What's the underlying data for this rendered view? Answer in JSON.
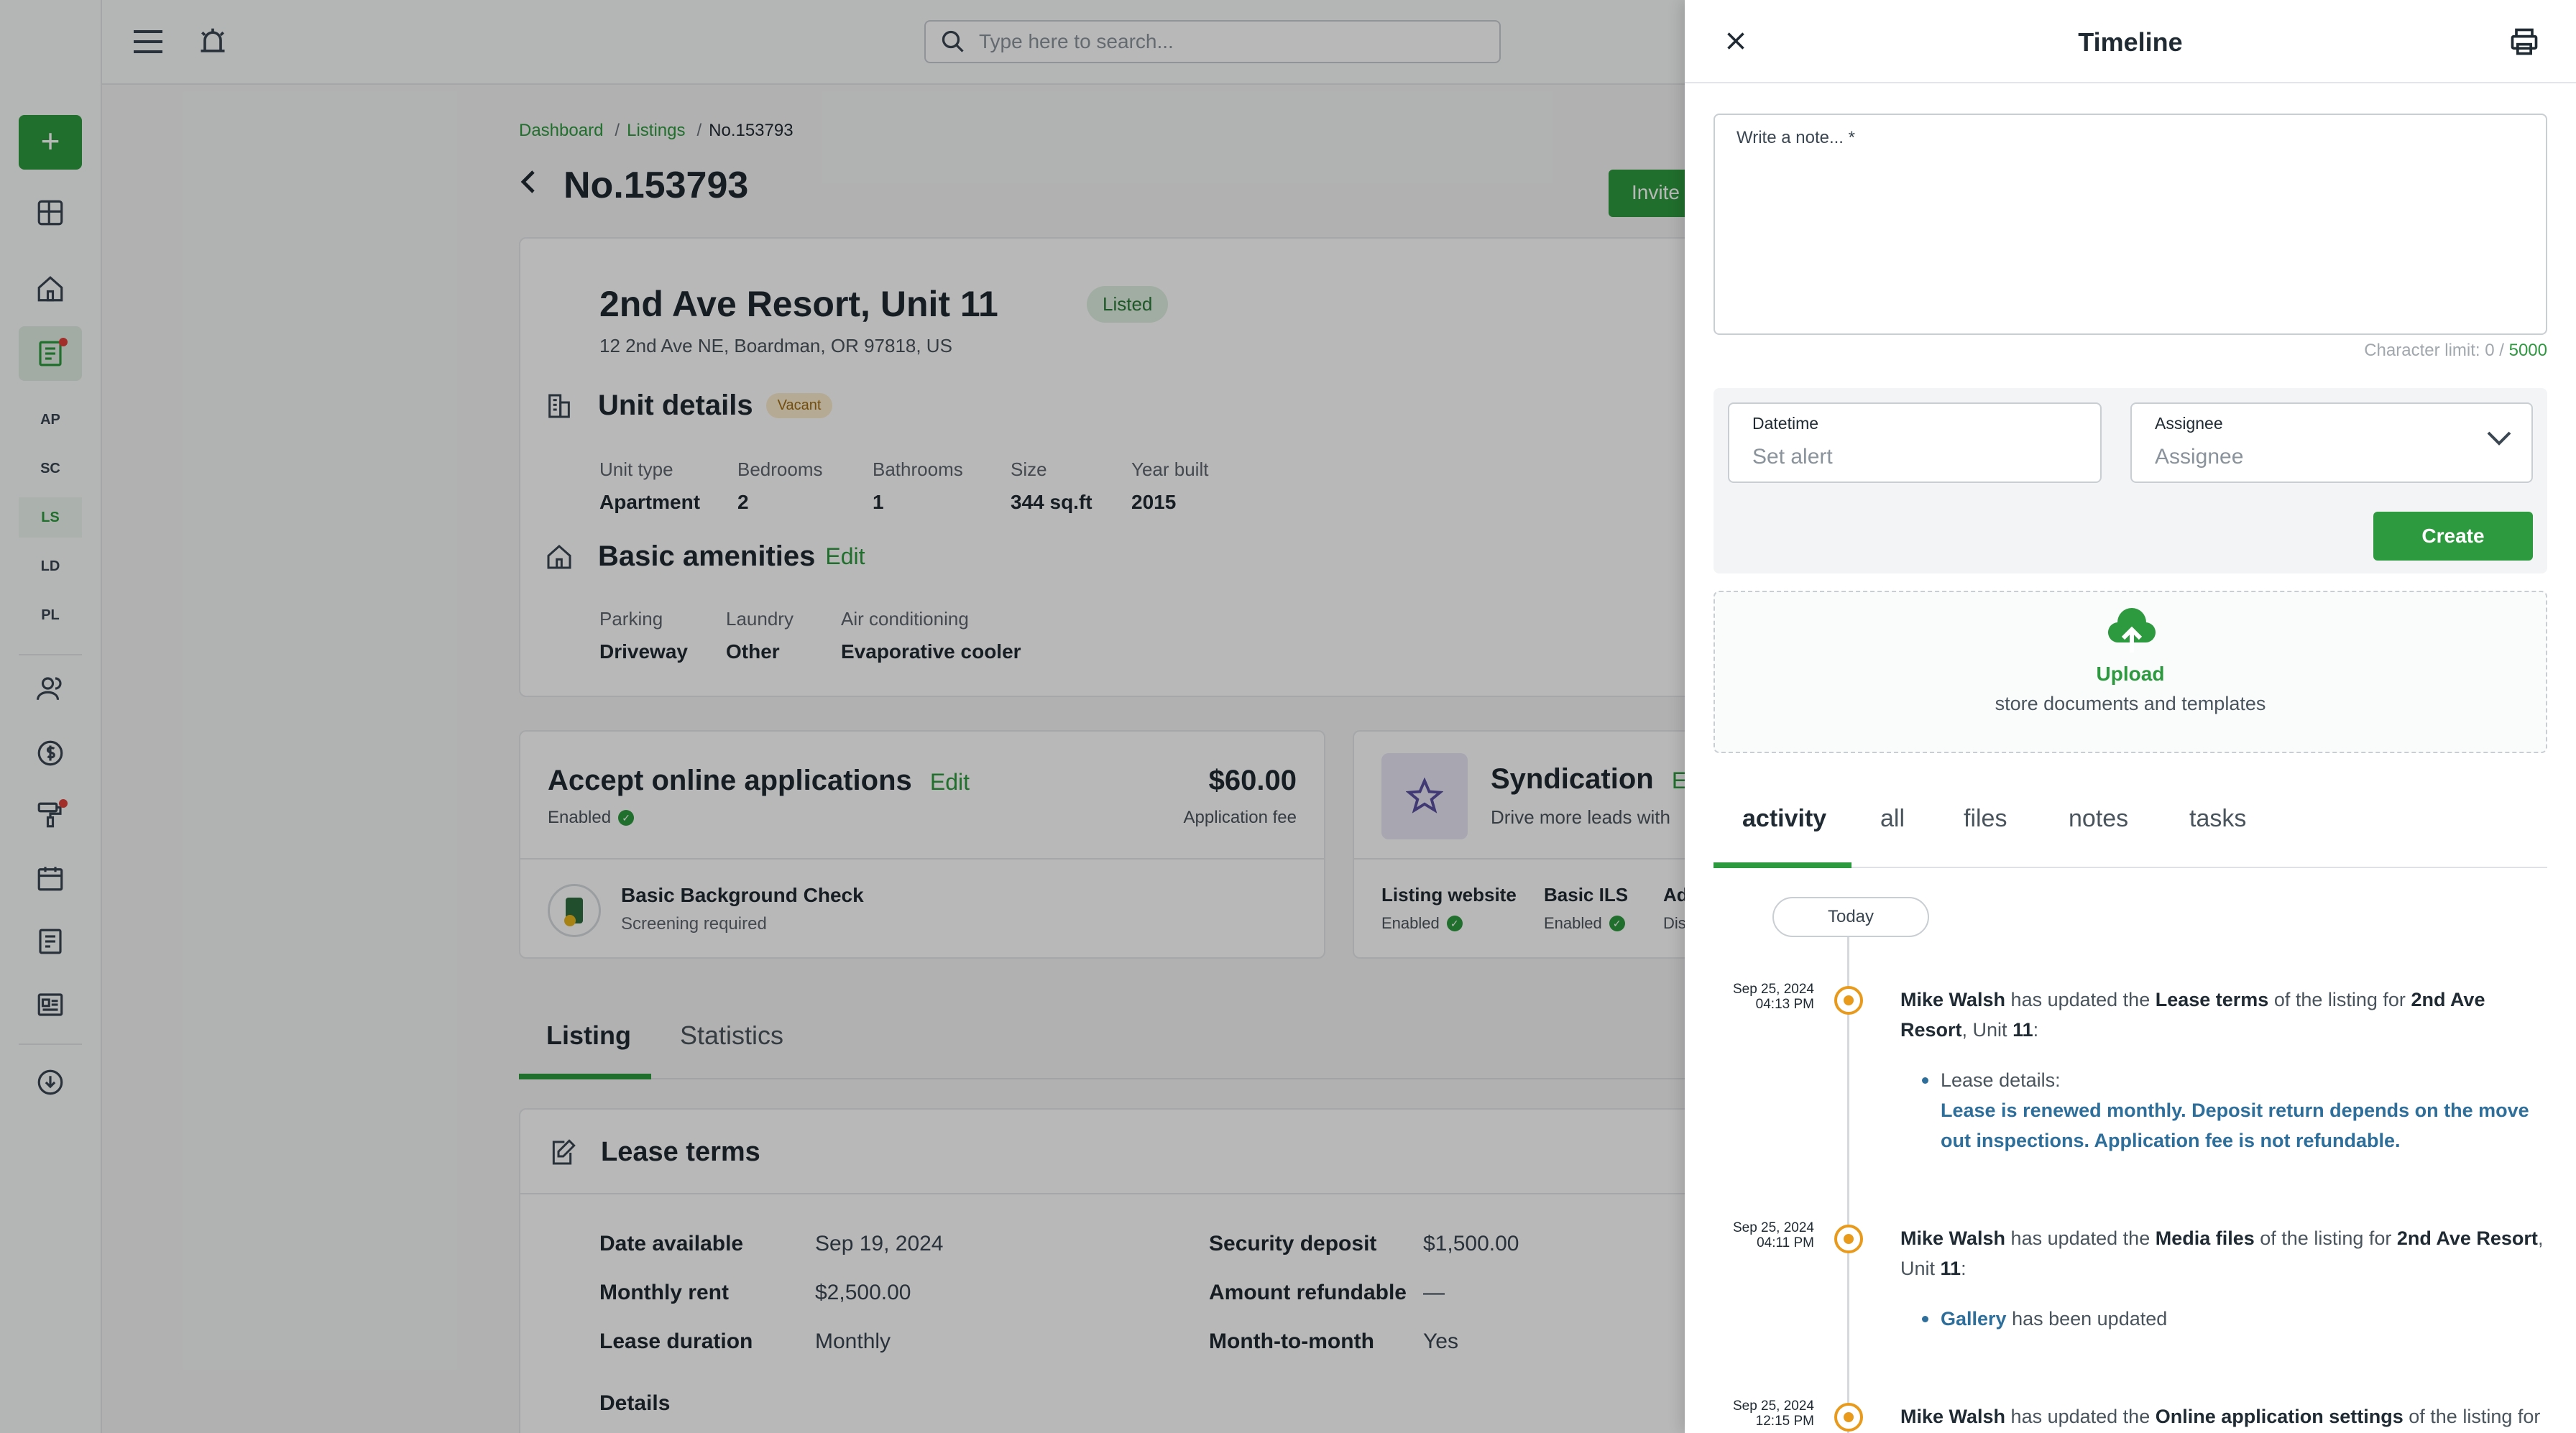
{
  "topbar": {
    "search_placeholder": "Type here to search...",
    "menu_icon": "menu-icon",
    "bell_icon": "bell-icon"
  },
  "rail": {
    "add_label": "+",
    "abbrs": [
      "AP",
      "SC",
      "LS",
      "LD",
      "PL"
    ]
  },
  "breadcrumb": {
    "items": [
      "Dashboard",
      "Listings"
    ],
    "separator": "/",
    "current": "No.153793"
  },
  "page": {
    "title": "No.153793",
    "invite_label": "Invite"
  },
  "property": {
    "name": "2nd Ave Resort, Unit 11",
    "status": "Listed",
    "address": "12 2nd Ave NE, Boardman, OR 97818, US"
  },
  "unit_details": {
    "heading": "Unit details",
    "badge": "Vacant",
    "fields": [
      {
        "label": "Unit type",
        "value": "Apartment"
      },
      {
        "label": "Bedrooms",
        "value": "2"
      },
      {
        "label": "Bathrooms",
        "value": "1"
      },
      {
        "label": "Size",
        "value": "344 sq.ft"
      },
      {
        "label": "Year built",
        "value": "2015"
      }
    ]
  },
  "amenities": {
    "heading": "Basic amenities",
    "edit_label": "Edit",
    "fields": [
      {
        "label": "Parking",
        "value": "Driveway"
      },
      {
        "label": "Laundry",
        "value": "Other"
      },
      {
        "label": "Air conditioning",
        "value": "Evaporative cooler"
      }
    ]
  },
  "applications": {
    "heading": "Accept online applications",
    "edit_label": "Edit",
    "status": "Enabled",
    "fee": "$60.00",
    "fee_label": "Application fee",
    "check_name": "Basic Background Check",
    "check_sub": "Screening required"
  },
  "syndication": {
    "heading": "Syndication",
    "edit_label": "Edit",
    "sub": "Drive more leads with",
    "items": [
      {
        "label": "Listing website",
        "status": "Enabled"
      },
      {
        "label": "Basic ILS",
        "status": "Enabled"
      },
      {
        "label": "Ad",
        "status": "Dis"
      }
    ]
  },
  "main_tabs": [
    "Listing",
    "Statistics"
  ],
  "lease_terms": {
    "heading": "Lease terms",
    "left": [
      {
        "label": "Date available",
        "value": "Sep 19, 2024"
      },
      {
        "label": "Monthly rent",
        "value": "$2,500.00"
      },
      {
        "label": "Lease duration",
        "value": "Monthly"
      }
    ],
    "right": [
      {
        "label": "Security deposit",
        "value": "$1,500.00"
      },
      {
        "label": "Amount refundable",
        "value": "—"
      },
      {
        "label": "Month-to-month",
        "value": "Yes"
      }
    ],
    "details_label": "Details"
  },
  "timeline": {
    "title": "Timeline",
    "note_placeholder": "Write a note... *",
    "char_limit_label": "Character limit: 0 / ",
    "char_limit_max": "5000",
    "datetime_label": "Datetime",
    "datetime_placeholder": "Set alert",
    "assignee_label": "Assignee",
    "assignee_placeholder": "Assignee",
    "create_label": "Create",
    "upload_title": "Upload",
    "upload_sub": "store documents and templates",
    "tabs": [
      "activity",
      "all",
      "files",
      "notes",
      "tasks"
    ],
    "today_label": "Today",
    "events": [
      {
        "date": "Sep 25, 2024",
        "time": "04:13 PM",
        "actor": "Mike Walsh",
        "action": " has updated the ",
        "object": "Lease terms",
        "mid": " of the listing for ",
        "target": "2nd Ave Resort",
        "sep": ", Unit ",
        "unit": "11",
        "end": ":",
        "detail_key": "Lease details:",
        "detail_val": "Lease is renewed monthly. Deposit return depends on the move out inspections. Application fee is not refundable."
      },
      {
        "date": "Sep 25, 2024",
        "time": "04:11 PM",
        "actor": "Mike Walsh",
        "action": " has updated the ",
        "object": "Media files",
        "mid": " of the listing for ",
        "target": "2nd Ave Resort",
        "sep": ", Unit ",
        "unit": "11",
        "end": ":",
        "detail_key": "Gallery",
        "detail_val": " has been updated"
      },
      {
        "date": "Sep 25, 2024",
        "time": "12:15 PM",
        "actor": "Mike Walsh",
        "action": " has updated the ",
        "object": "Online application settings",
        "mid": " of the listing for"
      }
    ]
  },
  "colors": {
    "accent": "#2e9a3f",
    "timeline_dot": "#e89a1c",
    "vacant_bg": "#fbeccc"
  }
}
